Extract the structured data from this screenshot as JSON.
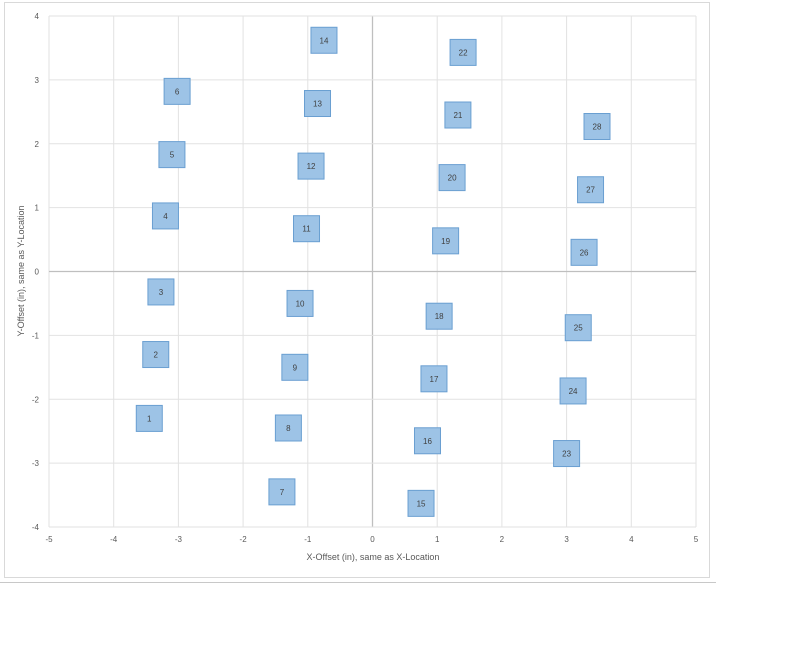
{
  "chart_data": {
    "type": "scatter",
    "xlabel": "X-Offset (in), same as X-Location",
    "ylabel": "Y-Offset (in), same as Y-Location",
    "xlim": [
      -5,
      5
    ],
    "ylim": [
      -4,
      4
    ],
    "x_ticks": [
      -5,
      -4,
      -3,
      -2,
      -1,
      0,
      1,
      2,
      3,
      4,
      5
    ],
    "y_ticks": [
      -4,
      -3,
      -2,
      -1,
      0,
      1,
      2,
      3,
      4
    ],
    "grid": true,
    "marker": "square",
    "marker_color": "#9dc3e6",
    "marker_edge_color": "#6a9fd1",
    "points": [
      {
        "label": "1",
        "x": -3.45,
        "y": -2.3
      },
      {
        "label": "2",
        "x": -3.35,
        "y": -1.3
      },
      {
        "label": "3",
        "x": -3.27,
        "y": -0.32
      },
      {
        "label": "4",
        "x": -3.2,
        "y": 0.87
      },
      {
        "label": "5",
        "x": -3.1,
        "y": 1.83
      },
      {
        "label": "6",
        "x": -3.02,
        "y": 2.82
      },
      {
        "label": "7",
        "x": -1.4,
        "y": -3.45
      },
      {
        "label": "8",
        "x": -1.3,
        "y": -2.45
      },
      {
        "label": "9",
        "x": -1.2,
        "y": -1.5
      },
      {
        "label": "10",
        "x": -1.12,
        "y": -0.5
      },
      {
        "label": "11",
        "x": -1.02,
        "y": 0.67
      },
      {
        "label": "12",
        "x": -0.95,
        "y": 1.65
      },
      {
        "label": "13",
        "x": -0.85,
        "y": 2.63
      },
      {
        "label": "14",
        "x": -0.75,
        "y": 3.62
      },
      {
        "label": "15",
        "x": 0.75,
        "y": -3.63
      },
      {
        "label": "16",
        "x": 0.85,
        "y": -2.65
      },
      {
        "label": "17",
        "x": 0.95,
        "y": -1.68
      },
      {
        "label": "18",
        "x": 1.03,
        "y": -0.7
      },
      {
        "label": "19",
        "x": 1.13,
        "y": 0.48
      },
      {
        "label": "20",
        "x": 1.23,
        "y": 1.47
      },
      {
        "label": "21",
        "x": 1.32,
        "y": 2.45
      },
      {
        "label": "22",
        "x": 1.4,
        "y": 3.43
      },
      {
        "label": "23",
        "x": 3.0,
        "y": -2.85
      },
      {
        "label": "24",
        "x": 3.1,
        "y": -1.87
      },
      {
        "label": "25",
        "x": 3.18,
        "y": -0.88
      },
      {
        "label": "26",
        "x": 3.27,
        "y": 0.3
      },
      {
        "label": "27",
        "x": 3.37,
        "y": 1.28
      },
      {
        "label": "28",
        "x": 3.47,
        "y": 2.27
      }
    ]
  }
}
